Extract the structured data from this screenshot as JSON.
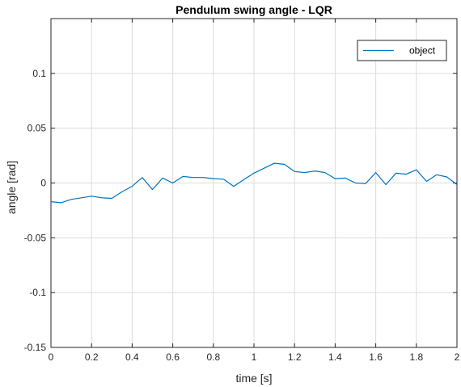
{
  "chart_data": {
    "type": "line",
    "title": "Pendulum swing angle - LQR",
    "xlabel": "time [s]",
    "ylabel": "angle [rad]",
    "xlim": [
      0,
      2
    ],
    "ylim": [
      -0.15,
      0.15
    ],
    "x_ticks": [
      "0",
      "0.2",
      "0.4",
      "0.6",
      "0.8",
      "1",
      "1.2",
      "1.4",
      "1.6",
      "1.8",
      "2"
    ],
    "y_ticks": [
      "-0.15",
      "-0.1",
      "-0.05",
      "0",
      "0.05",
      "0.1"
    ],
    "y_tick_values": [
      -0.15,
      -0.1,
      -0.05,
      0,
      0.05,
      0.1
    ],
    "grid": true,
    "legend_position": "top-right",
    "series": [
      {
        "name": "object",
        "color": "#0072bd",
        "x": [
          0,
          0.05,
          0.1,
          0.15,
          0.2,
          0.25,
          0.3,
          0.35,
          0.4,
          0.45,
          0.5,
          0.55,
          0.6,
          0.65,
          0.7,
          0.75,
          0.8,
          0.85,
          0.9,
          0.95,
          1.0,
          1.05,
          1.1,
          1.15,
          1.2,
          1.25,
          1.3,
          1.35,
          1.4,
          1.45,
          1.5,
          1.55,
          1.6,
          1.65,
          1.7,
          1.75,
          1.8,
          1.85,
          1.9,
          1.95,
          2.0
        ],
        "y": [
          -0.017,
          -0.018,
          -0.015,
          -0.0135,
          -0.012,
          -0.0135,
          -0.014,
          -0.008,
          -0.003,
          0.005,
          -0.006,
          0.0045,
          0.0,
          0.006,
          0.005,
          0.005,
          0.004,
          0.0035,
          -0.003,
          0.003,
          0.009,
          0.0135,
          0.018,
          0.017,
          0.0105,
          0.0095,
          0.011,
          0.0095,
          0.004,
          0.0045,
          0.0,
          -0.0005,
          0.0095,
          -0.0015,
          0.009,
          0.008,
          0.012,
          0.0015,
          0.0075,
          0.0055,
          -0.0015
        ]
      }
    ]
  }
}
